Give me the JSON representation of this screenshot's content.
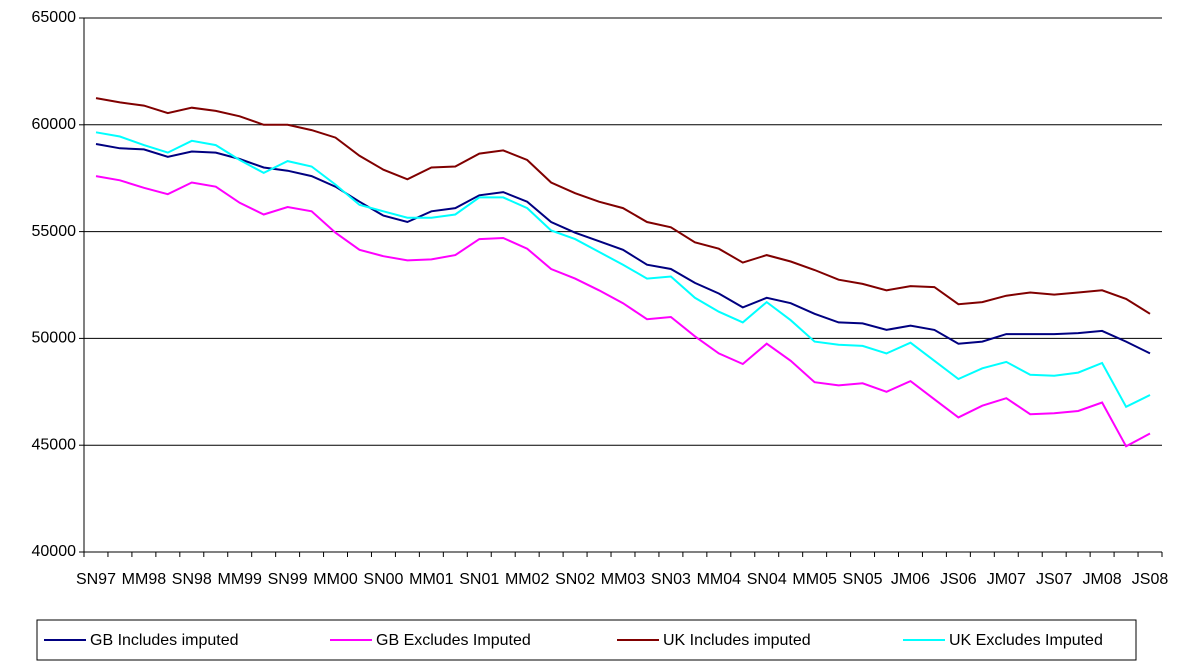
{
  "chart_data": {
    "type": "line",
    "categories": [
      "SN97",
      null,
      "MM98",
      null,
      "SN98",
      null,
      "MM99",
      null,
      "SN99",
      null,
      "MM00",
      null,
      "SN00",
      null,
      "MM01",
      null,
      "SN01",
      null,
      "MM02",
      null,
      "SN02",
      null,
      "MM03",
      null,
      "SN03",
      null,
      "MM04",
      null,
      "SN04",
      null,
      "MM05",
      null,
      "SN05",
      null,
      "JM06",
      null,
      "JS06",
      null,
      "JM07",
      null,
      "JS07",
      null,
      "JM08",
      null,
      "JS08"
    ],
    "series": [
      {
        "name": "GB Includes imputed",
        "color": "#000080",
        "values": [
          59100,
          58900,
          58850,
          58500,
          58750,
          58700,
          58400,
          58000,
          57850,
          57600,
          57100,
          56400,
          55750,
          55450,
          55950,
          56100,
          56700,
          56850,
          56400,
          55450,
          54950,
          54550,
          54150,
          53450,
          53250,
          52600,
          52100,
          51450,
          51900,
          51650,
          51150,
          50750,
          50700,
          50400,
          50600,
          50400,
          49750,
          49850,
          50200,
          50200,
          50200,
          50250,
          50350,
          49850,
          49300
        ]
      },
      {
        "name": "GB Excludes Imputed",
        "color": "#ff00ff",
        "values": [
          57600,
          57400,
          57050,
          56750,
          57300,
          57100,
          56350,
          55800,
          56150,
          55950,
          54950,
          54150,
          53850,
          53650,
          53700,
          53900,
          54650,
          54700,
          54200,
          53250,
          52800,
          52250,
          51650,
          50900,
          51000,
          50100,
          49300,
          48800,
          49750,
          48950,
          47950,
          47800,
          47900,
          47500,
          48000,
          47150,
          46300,
          46850,
          47200,
          46450,
          46500,
          46600,
          47000,
          44950,
          45550
        ]
      },
      {
        "name": "UK Includes imputed",
        "color": "#800000",
        "values": [
          61250,
          61050,
          60900,
          60550,
          60800,
          60650,
          60400,
          60000,
          60000,
          59750,
          59400,
          58550,
          57900,
          57450,
          58000,
          58050,
          58650,
          58800,
          58350,
          57300,
          56800,
          56400,
          56100,
          55450,
          55200,
          54500,
          54200,
          53550,
          53900,
          53600,
          53200,
          52750,
          52550,
          52250,
          52450,
          52400,
          51600,
          51700,
          52000,
          52150,
          52050,
          52150,
          52250,
          51850,
          51150
        ]
      },
      {
        "name": "UK Excludes Imputed",
        "color": "#00ffff",
        "values": [
          59650,
          59450,
          59050,
          58700,
          59250,
          59050,
          58350,
          57750,
          58300,
          58050,
          57200,
          56250,
          55950,
          55650,
          55650,
          55800,
          56600,
          56600,
          56100,
          55050,
          54650,
          54050,
          53450,
          52800,
          52900,
          51900,
          51250,
          50750,
          51700,
          50850,
          49850,
          49700,
          49650,
          49300,
          49800,
          48950,
          48100,
          48600,
          48900,
          48300,
          48250,
          48400,
          48850,
          46800,
          47350
        ]
      }
    ],
    "ylim": [
      40000,
      65000
    ],
    "yticks": [
      40000,
      45000,
      50000,
      55000,
      60000,
      65000
    ],
    "grid": true,
    "legend": "bottom"
  }
}
